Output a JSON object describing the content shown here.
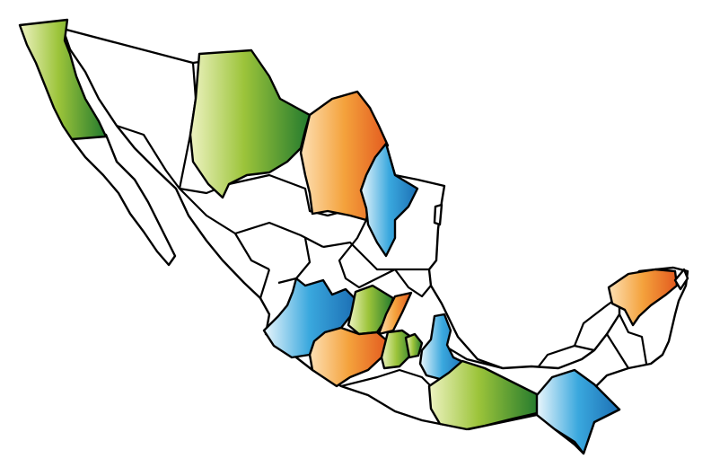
{
  "map": {
    "colors": {
      "outline": "#000000",
      "background": "#ffffff",
      "green": [
        "#eef3c2",
        "#9cc43a",
        "#237a2e"
      ],
      "orange": [
        "#fde0b4",
        "#f4a23c",
        "#e35a1f"
      ],
      "blue": [
        "#eaf6fc",
        "#3aa8de",
        "#1c6fb4"
      ]
    },
    "highlighted_regions": [
      {
        "name": "baja-california",
        "category": "green"
      },
      {
        "name": "chihuahua",
        "category": "green"
      },
      {
        "name": "coahuila",
        "category": "orange"
      },
      {
        "name": "nuevo-leon",
        "category": "blue"
      },
      {
        "name": "jalisco",
        "category": "blue"
      },
      {
        "name": "guanajuato",
        "category": "green"
      },
      {
        "name": "queretaro",
        "category": "orange"
      },
      {
        "name": "michoacan",
        "category": "orange"
      },
      {
        "name": "estado-de-mexico",
        "category": "green"
      },
      {
        "name": "mexico-city",
        "category": "green"
      },
      {
        "name": "puebla",
        "category": "blue"
      },
      {
        "name": "oaxaca",
        "category": "green"
      },
      {
        "name": "chiapas",
        "category": "blue"
      },
      {
        "name": "yucatan",
        "category": "orange"
      }
    ]
  }
}
